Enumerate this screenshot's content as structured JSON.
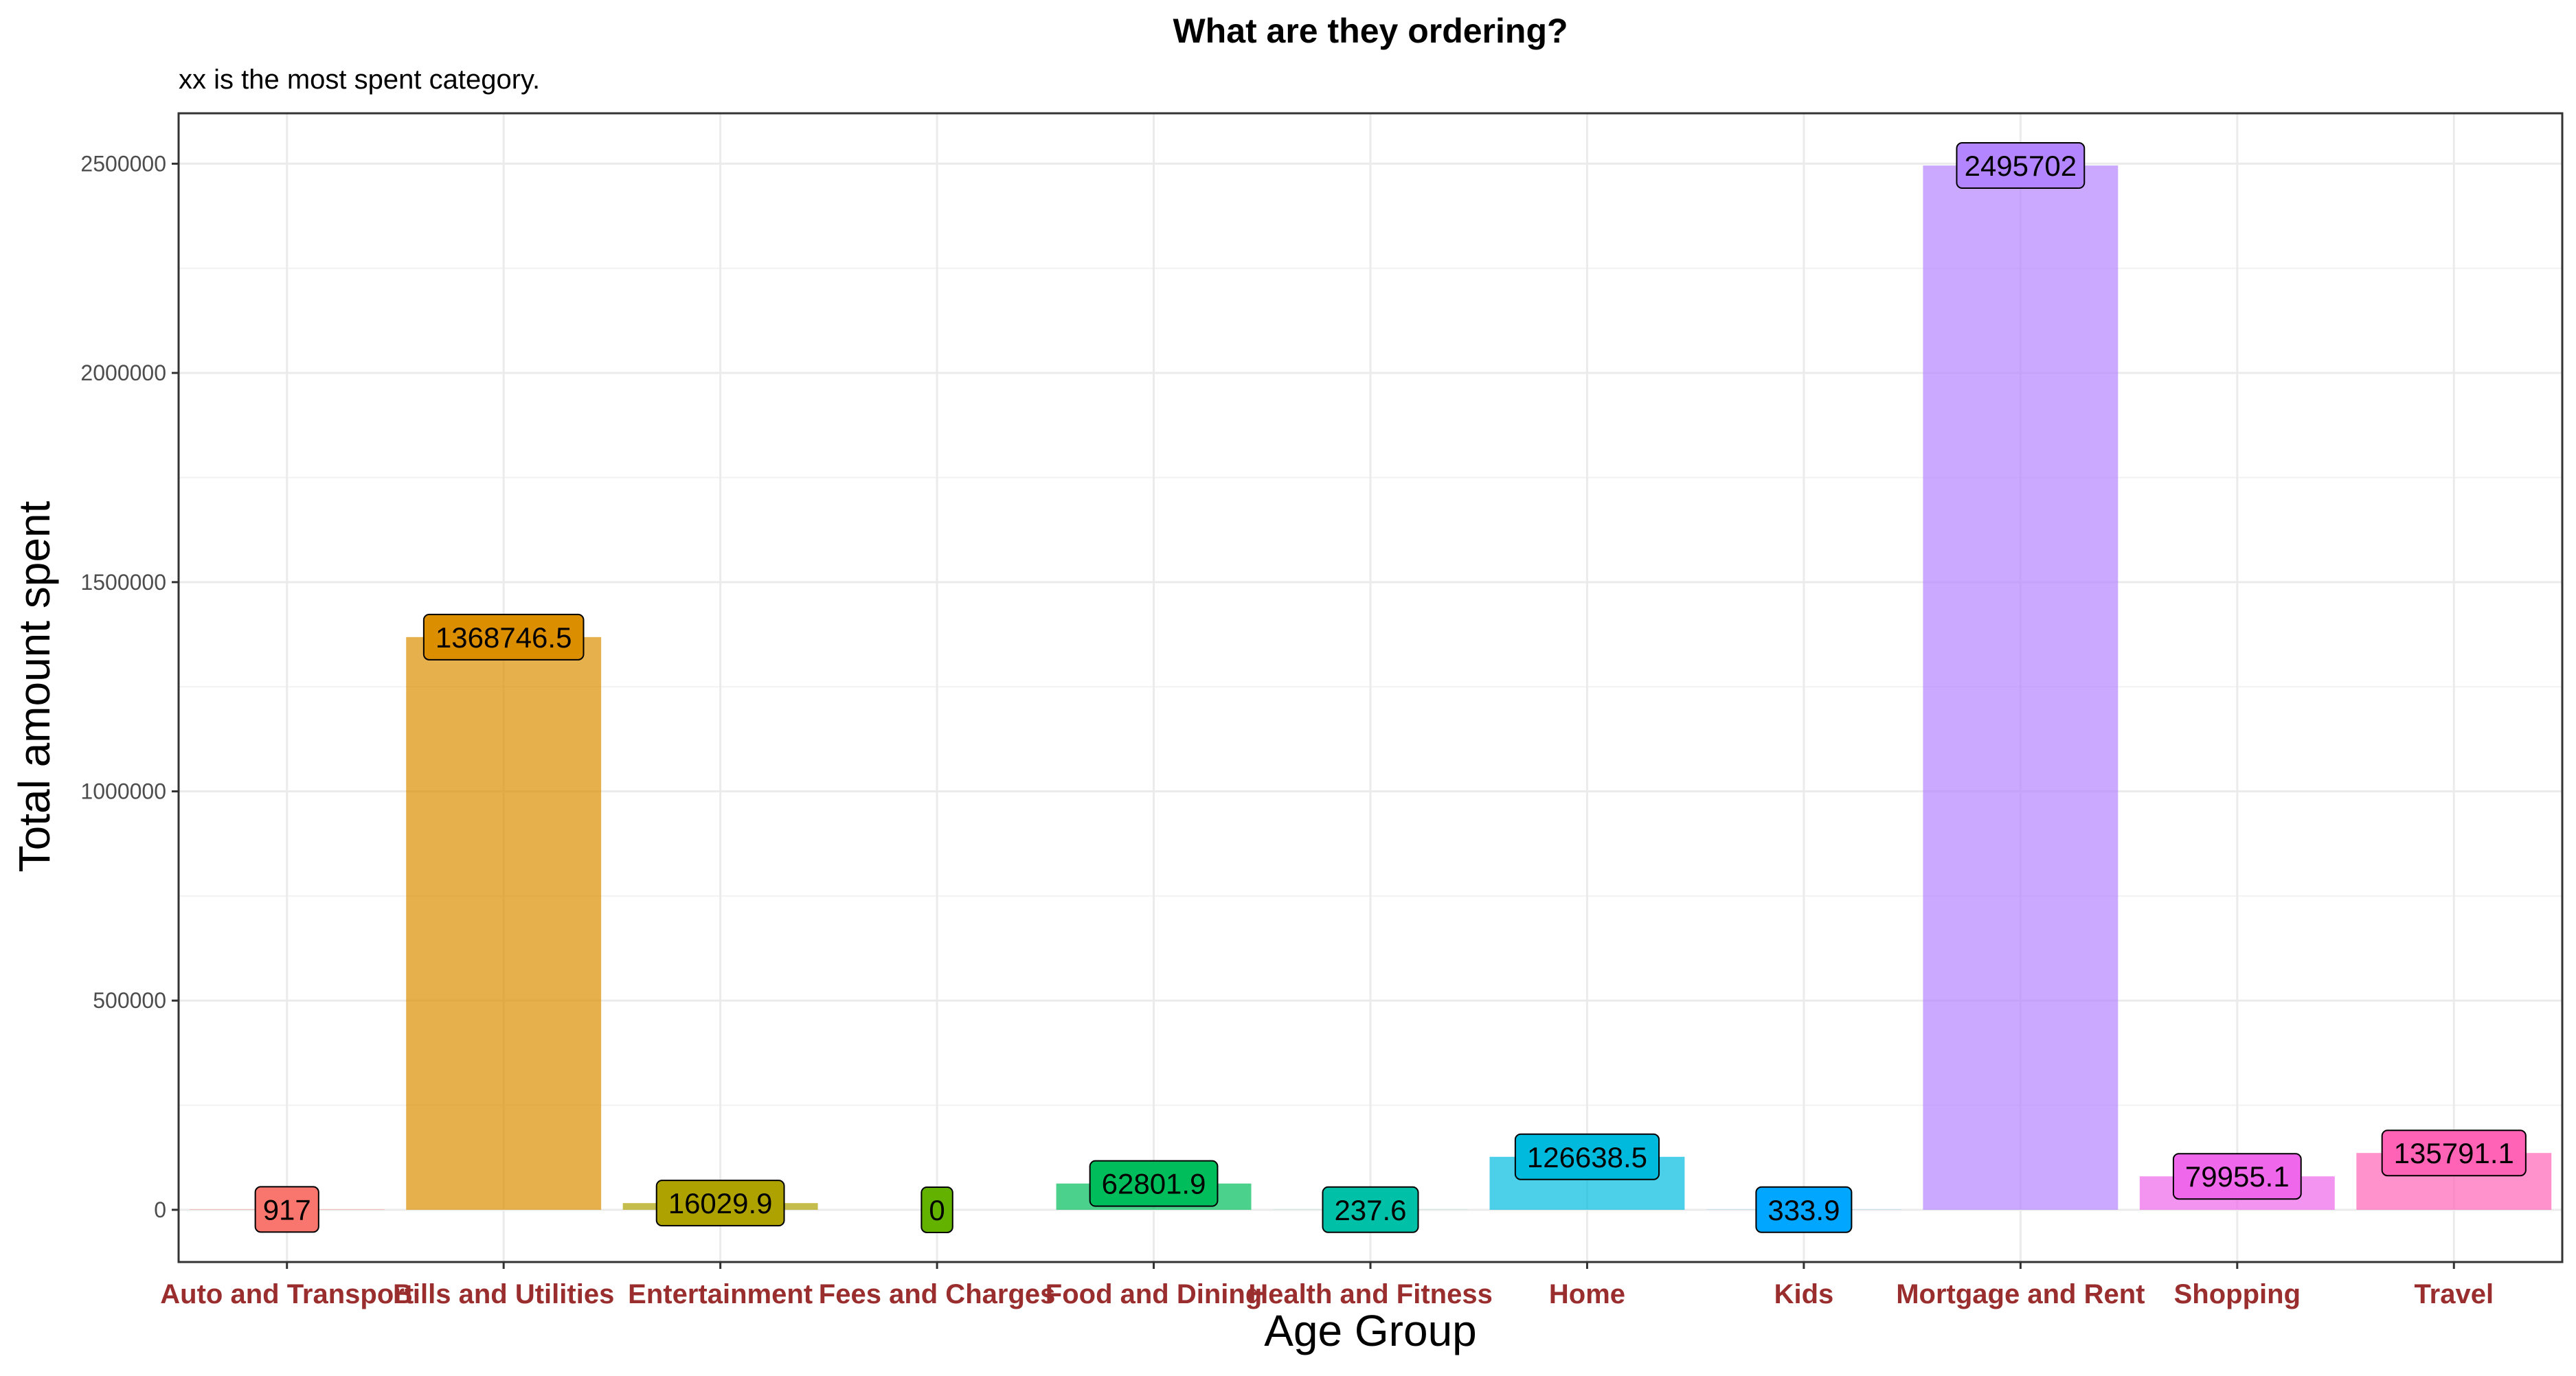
{
  "chart_data": {
    "type": "bar",
    "title": "What are they ordering?",
    "subtitle": "xx is the most spent category.",
    "xlabel": "Age Group",
    "ylabel": "Total amount spent",
    "categories": [
      "Auto and Transport",
      "Bills and Utilities",
      "Entertainment",
      "Fees and Charges",
      "Food and Dining",
      "Health and Fitness",
      "Home",
      "Kids",
      "Mortgage and Rent",
      "Shopping",
      "Travel"
    ],
    "values": [
      917,
      1368746.5,
      16029.9,
      0,
      62801.9,
      237.6,
      126638.5,
      333.9,
      2495702,
      79955.1,
      135791.1
    ],
    "value_labels": [
      "917",
      "1368746.5",
      "16029.9",
      "0",
      "62801.9",
      "237.6",
      "126638.5",
      "333.9",
      "2495702",
      "79955.1",
      "135791.1"
    ],
    "colors": [
      "#F8766D",
      "#DB8E00",
      "#AEA200",
      "#64B200",
      "#00BD5C",
      "#00C1A7",
      "#00BADE",
      "#00A6FF",
      "#B385FF",
      "#EF67EB",
      "#FF63B6"
    ],
    "yticks": [
      0,
      500000,
      1000000,
      1500000,
      2000000,
      2500000
    ],
    "ytick_labels": [
      "0",
      "500000",
      "1000000",
      "1500000",
      "2000000",
      "2500000"
    ],
    "ylim": [
      -124785,
      2620487
    ],
    "grid": true,
    "tick_label_color": "#9a2e2e",
    "legend": "none"
  }
}
